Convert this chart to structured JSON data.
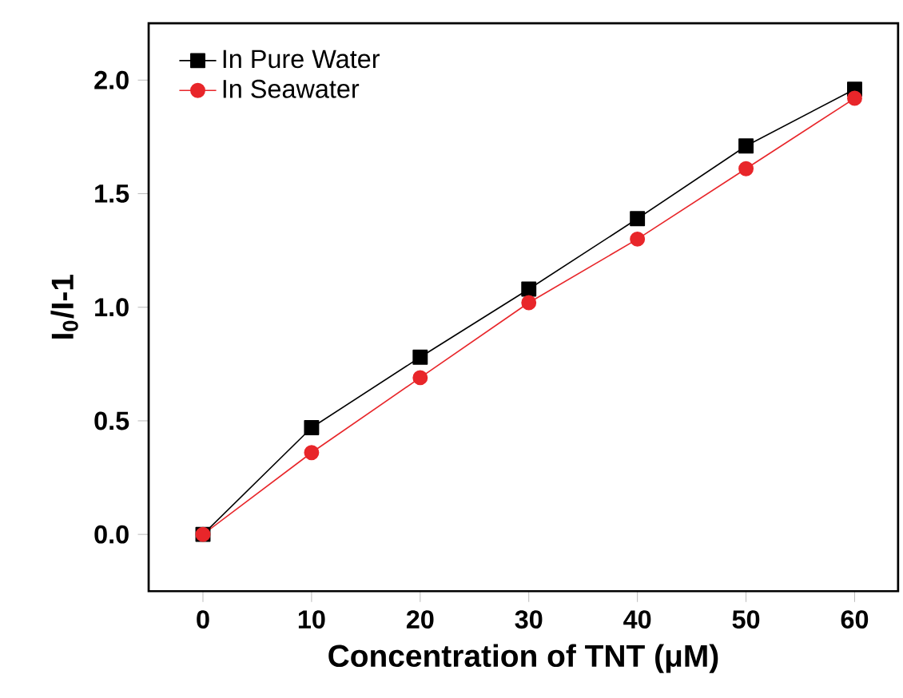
{
  "chart_data": {
    "type": "line",
    "xlabel": "Concentration of TNT (μM)",
    "ylabel": "I$_{0}$/I-1",
    "x": [
      0,
      10,
      20,
      30,
      40,
      50,
      60
    ],
    "series": [
      {
        "name": "In Pure Water",
        "color": "#000000",
        "marker": "square",
        "values": [
          0,
          0.47,
          0.78,
          1.08,
          1.39,
          1.71,
          1.96
        ]
      },
      {
        "name": "In Seawater",
        "color": "#e8262a",
        "marker": "circle",
        "values": [
          0,
          0.36,
          0.69,
          1.02,
          1.3,
          1.61,
          1.92
        ]
      }
    ],
    "xlim": [
      -5,
      64
    ],
    "ylim": [
      -0.25,
      2.25
    ],
    "xticks": [
      0,
      10,
      20,
      30,
      40,
      50,
      60
    ],
    "yticks": [
      {
        "value": 0,
        "label": "0.0"
      },
      0.5,
      {
        "value": 1,
        "label": "1.0"
      },
      1.5,
      {
        "value": 2,
        "label": "2.0"
      }
    ],
    "legend": "top left",
    "grid": false,
    "line_style": "solid"
  }
}
